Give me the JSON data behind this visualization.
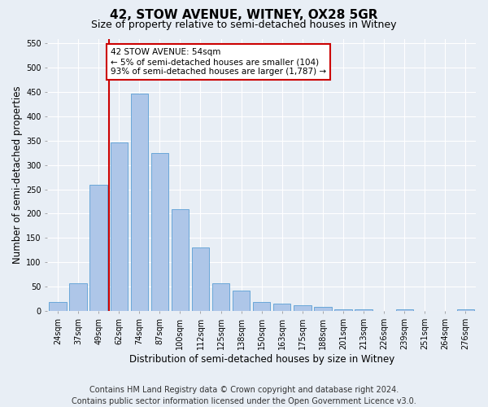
{
  "title": "42, STOW AVENUE, WITNEY, OX28 5GR",
  "subtitle": "Size of property relative to semi-detached houses in Witney",
  "xlabel": "Distribution of semi-detached houses by size in Witney",
  "ylabel": "Number of semi-detached properties",
  "footer_line1": "Contains HM Land Registry data © Crown copyright and database right 2024.",
  "footer_line2": "Contains public sector information licensed under the Open Government Licence v3.0.",
  "bar_labels": [
    "24sqm",
    "37sqm",
    "49sqm",
    "62sqm",
    "74sqm",
    "87sqm",
    "100sqm",
    "112sqm",
    "125sqm",
    "138sqm",
    "150sqm",
    "163sqm",
    "175sqm",
    "188sqm",
    "201sqm",
    "213sqm",
    "226sqm",
    "239sqm",
    "251sqm",
    "264sqm",
    "276sqm"
  ],
  "bar_values": [
    18,
    57,
    260,
    347,
    447,
    324,
    210,
    130,
    57,
    41,
    18,
    15,
    11,
    8,
    4,
    4,
    0,
    4,
    0,
    0,
    4
  ],
  "bar_color": "#aec6e8",
  "bar_edge_color": "#5a9fd4",
  "annotation_text": "42 STOW AVENUE: 54sqm\n← 5% of semi-detached houses are smaller (104)\n93% of semi-detached houses are larger (1,787) →",
  "annotation_box_color": "#ffffff",
  "annotation_box_edge": "#cc0000",
  "redline_color": "#cc0000",
  "redline_bar_index": 2,
  "ylim": [
    0,
    560
  ],
  "yticks": [
    0,
    50,
    100,
    150,
    200,
    250,
    300,
    350,
    400,
    450,
    500,
    550
  ],
  "bg_color": "#e8eef5",
  "plot_bg_color": "#e8eef5",
  "grid_color": "#ffffff",
  "title_fontsize": 11,
  "subtitle_fontsize": 9,
  "axis_label_fontsize": 8.5,
  "tick_fontsize": 7,
  "footer_fontsize": 7,
  "annotation_fontsize": 7.5
}
